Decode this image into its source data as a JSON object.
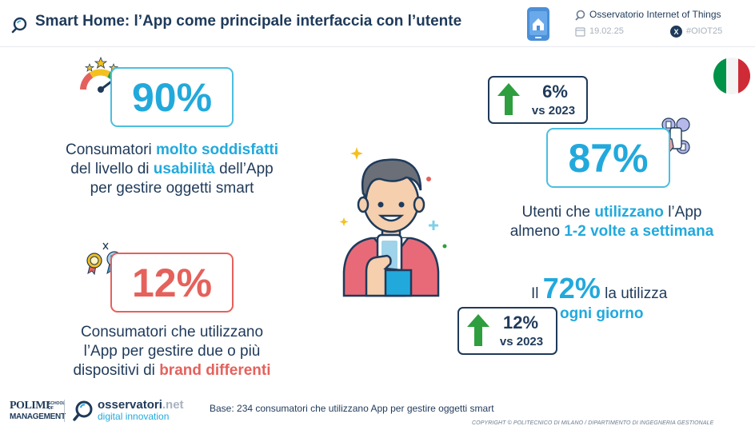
{
  "header": {
    "title": "Smart Home: l’App come principale interfaccia con l’utente",
    "observatory": "Osservatorio Internet of Things",
    "date": "19.02.25",
    "hashtag": "#OIOT25"
  },
  "stats": {
    "satisfied": {
      "value": "90%",
      "text_1": "Consumatori ",
      "highlight_1": "molto soddisfatti",
      "text_2": "del livello di ",
      "highlight_2": "usabilità",
      "text_3": " dell’App",
      "text_4": "per gestire oggetti smart"
    },
    "multi_brand": {
      "value": "12%",
      "text_1": "Consumatori che utilizzano",
      "text_2": "l’App per gestire due o più",
      "text_3": "dispositivi di ",
      "highlight": "brand differenti"
    },
    "weekly": {
      "trend_value": "6%",
      "trend_ref": "vs 2023",
      "value": "87%",
      "text_1": "Utenti che ",
      "highlight_1": "utilizzano",
      "text_2": " l’App",
      "text_3": "almeno ",
      "highlight_2": "1-2 volte a settimana"
    },
    "daily": {
      "prefix": "Il ",
      "value": "72%",
      "suffix": " la utilizza",
      "highlight": "ogni giorno",
      "trend_value": "12%",
      "trend_ref": "vs 2023"
    }
  },
  "footer": {
    "logo_polimi_1": "POLIMI",
    "logo_polimi_2": "SCHOOL OF",
    "logo_polimi_3": "MANAGEMENT",
    "logo_osservatori_1": "osservatori",
    "logo_osservatori_2": ".net",
    "logo_osservatori_3": "digital innovation",
    "base": "Base: 234 consumatori che utilizzano App per gestire oggetti smart",
    "copyright": "COPYRIGHT © POLITECNICO DI MILANO / DIPARTIMENTO DI INGEGNERIA GESTIONALE"
  },
  "colors": {
    "navy": "#1f3a5a",
    "blue": "#22a9dc",
    "red": "#e5615c",
    "green": "#2e9e3e",
    "flag_green": "#009246",
    "flag_red": "#ce2b37"
  },
  "icons": [
    "search-icon",
    "smartphone-home-icon",
    "calendar-icon",
    "x-logo-icon",
    "gauge-icon",
    "star-icon",
    "medals-icon",
    "italy-flag-icon",
    "person-phone-illustration",
    "phone-hand-icon",
    "arrow-up-icon"
  ]
}
